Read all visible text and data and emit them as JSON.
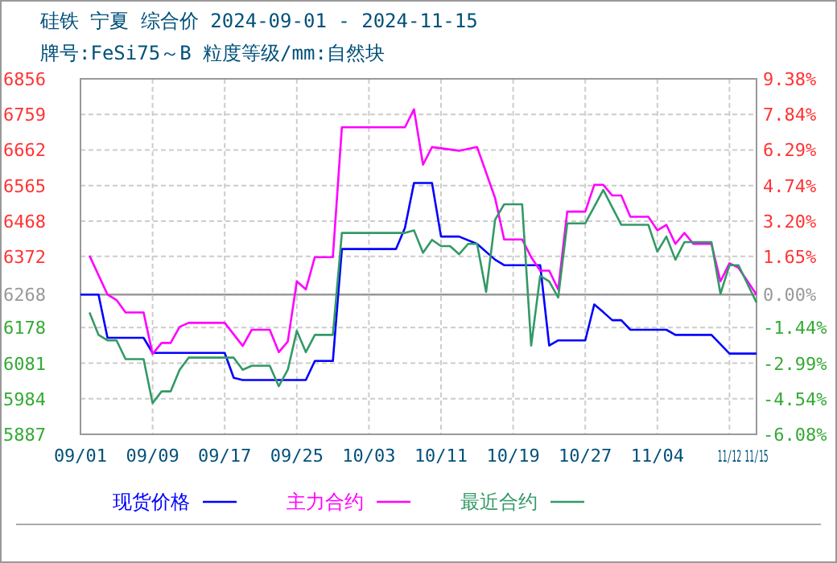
{
  "chart_data": {
    "type": "line",
    "title": "硅铁 宁夏 综合价 2024-09-01 - 2024-11-15",
    "subtitle": "牌号:FeSi75～B 粒度等级/mm:自然块",
    "xlim": [
      "2024-09-01",
      "2024-11-15"
    ],
    "xticks": [
      {
        "value": "2024-09-01",
        "label": "09/01"
      },
      {
        "value": "2024-09-09",
        "label": "09/09"
      },
      {
        "value": "2024-09-17",
        "label": "09/17"
      },
      {
        "value": "2024-09-25",
        "label": "09/25"
      },
      {
        "value": "2024-10-03",
        "label": "10/03"
      },
      {
        "value": "2024-10-11",
        "label": "10/11"
      },
      {
        "value": "2024-10-19",
        "label": "10/19"
      },
      {
        "value": "2024-10-27",
        "label": "10/27"
      },
      {
        "value": "2024-11-04",
        "label": "11/04"
      },
      {
        "value": "2024-11-12",
        "label": "11/12"
      },
      {
        "value": "2024-11-15",
        "label": "11/15"
      }
    ],
    "ylim": [
      5887,
      6856
    ],
    "yticks": [
      5887,
      5984,
      6081,
      6178,
      6268,
      6372,
      6468,
      6565,
      6662,
      6759,
      6856
    ],
    "y2lim": [
      -6.08,
      9.38
    ],
    "y2ticks": [
      {
        "value": -6.08,
        "label": "-6.08%"
      },
      {
        "value": -4.54,
        "label": "-4.54%"
      },
      {
        "value": -2.99,
        "label": "-2.99%"
      },
      {
        "value": -1.44,
        "label": "-1.44%"
      },
      {
        "value": 0,
        "label": "0.00%"
      },
      {
        "value": 1.65,
        "label": "1.65%"
      },
      {
        "value": 3.2,
        "label": "3.20%"
      },
      {
        "value": 4.74,
        "label": "4.74%"
      },
      {
        "value": 6.29,
        "label": "6.29%"
      },
      {
        "value": 7.84,
        "label": "7.84%"
      },
      {
        "value": 9.38,
        "label": "9.38%"
      }
    ],
    "ref_lines": [
      {
        "axis": "y",
        "value": 6268,
        "color": "#999999"
      }
    ],
    "grid": true,
    "legend": "bottom",
    "marker": "none",
    "line_style": "solid",
    "series": [
      {
        "name": "现货价格",
        "color": "#0000ff",
        "x": [
          "2024-09-01",
          "2024-09-03",
          "2024-09-04",
          "2024-09-08",
          "2024-09-09",
          "2024-09-17",
          "2024-09-18",
          "2024-09-19",
          "2024-09-26",
          "2024-09-27",
          "2024-09-29",
          "2024-09-30",
          "2024-10-06",
          "2024-10-07",
          "2024-10-08",
          "2024-10-10",
          "2024-10-11",
          "2024-10-13",
          "2024-10-15",
          "2024-10-17",
          "2024-10-18",
          "2024-10-22",
          "2024-10-23",
          "2024-10-24",
          "2024-10-27",
          "2024-10-28",
          "2024-10-29",
          "2024-10-30",
          "2024-10-31",
          "2024-11-01",
          "2024-11-05",
          "2024-11-06",
          "2024-11-10",
          "2024-11-12",
          "2024-11-15"
        ],
        "values": [
          6268,
          6268,
          6150,
          6150,
          6109,
          6109,
          6041,
          6035,
          6035,
          6087,
          6087,
          6392,
          6392,
          6450,
          6572,
          6572,
          6426,
          6426,
          6406,
          6363,
          6348,
          6348,
          6129,
          6143,
          6143,
          6241,
          6220,
          6198,
          6198,
          6172,
          6172,
          6158,
          6158,
          6107,
          6107
        ]
      },
      {
        "name": "主力合约",
        "color": "#ff00ff",
        "x": [
          "2024-09-02",
          "2024-09-04",
          "2024-09-05",
          "2024-09-06",
          "2024-09-08",
          "2024-09-09",
          "2024-09-10",
          "2024-09-11",
          "2024-09-12",
          "2024-09-13",
          "2024-09-17",
          "2024-09-19",
          "2024-09-20",
          "2024-09-22",
          "2024-09-23",
          "2024-09-24",
          "2024-09-25",
          "2024-09-26",
          "2024-09-27",
          "2024-09-29",
          "2024-09-30",
          "2024-10-07",
          "2024-10-08",
          "2024-10-09",
          "2024-10-10",
          "2024-10-13",
          "2024-10-15",
          "2024-10-17",
          "2024-10-18",
          "2024-10-20",
          "2024-10-21",
          "2024-10-22",
          "2024-10-23",
          "2024-10-24",
          "2024-10-25",
          "2024-10-27",
          "2024-10-28",
          "2024-10-29",
          "2024-10-30",
          "2024-10-31",
          "2024-11-01",
          "2024-11-03",
          "2024-11-04",
          "2024-11-05",
          "2024-11-06",
          "2024-11-07",
          "2024-11-08",
          "2024-11-10",
          "2024-11-11",
          "2024-11-12",
          "2024-11-13",
          "2024-11-15"
        ],
        "values": [
          6374,
          6268,
          6253,
          6219,
          6219,
          6106,
          6136,
          6136,
          6180,
          6191,
          6191,
          6128,
          6172,
          6172,
          6111,
          6140,
          6304,
          6282,
          6370,
          6370,
          6724,
          6724,
          6773,
          6622,
          6670,
          6660,
          6670,
          6531,
          6418,
          6418,
          6370,
          6333,
          6333,
          6282,
          6494,
          6494,
          6567,
          6567,
          6538,
          6538,
          6480,
          6480,
          6443,
          6458,
          6406,
          6436,
          6406,
          6406,
          6304,
          6353,
          6341,
          6268
        ]
      },
      {
        "name": "最近合约",
        "color": "#339966",
        "x": [
          "2024-09-02",
          "2024-09-03",
          "2024-09-04",
          "2024-09-05",
          "2024-09-06",
          "2024-09-08",
          "2024-09-09",
          "2024-09-10",
          "2024-09-11",
          "2024-09-12",
          "2024-09-13",
          "2024-09-18",
          "2024-09-19",
          "2024-09-20",
          "2024-09-22",
          "2024-09-23",
          "2024-09-24",
          "2024-09-25",
          "2024-09-26",
          "2024-09-27",
          "2024-09-29",
          "2024-09-30",
          "2024-10-07",
          "2024-10-08",
          "2024-10-09",
          "2024-10-10",
          "2024-10-11",
          "2024-10-12",
          "2024-10-13",
          "2024-10-14",
          "2024-10-15",
          "2024-10-16",
          "2024-10-17",
          "2024-10-18",
          "2024-10-20",
          "2024-10-21",
          "2024-10-22",
          "2024-10-23",
          "2024-10-24",
          "2024-10-25",
          "2024-10-27",
          "2024-10-29",
          "2024-10-31",
          "2024-11-03",
          "2024-11-04",
          "2024-11-05",
          "2024-11-06",
          "2024-11-07",
          "2024-11-10",
          "2024-11-11",
          "2024-11-12",
          "2024-11-13",
          "2024-11-15"
        ],
        "values": [
          6219,
          6158,
          6143,
          6143,
          6092,
          6092,
          5972,
          6004,
          6004,
          6063,
          6096,
          6096,
          6063,
          6074,
          6074,
          6018,
          6063,
          6169,
          6111,
          6158,
          6158,
          6436,
          6436,
          6443,
          6382,
          6417,
          6400,
          6400,
          6378,
          6406,
          6406,
          6275,
          6472,
          6514,
          6514,
          6129,
          6319,
          6304,
          6260,
          6462,
          6462,
          6553,
          6458,
          6458,
          6385,
          6426,
          6363,
          6411,
          6411,
          6270,
          6348,
          6348,
          6246
        ]
      }
    ]
  }
}
